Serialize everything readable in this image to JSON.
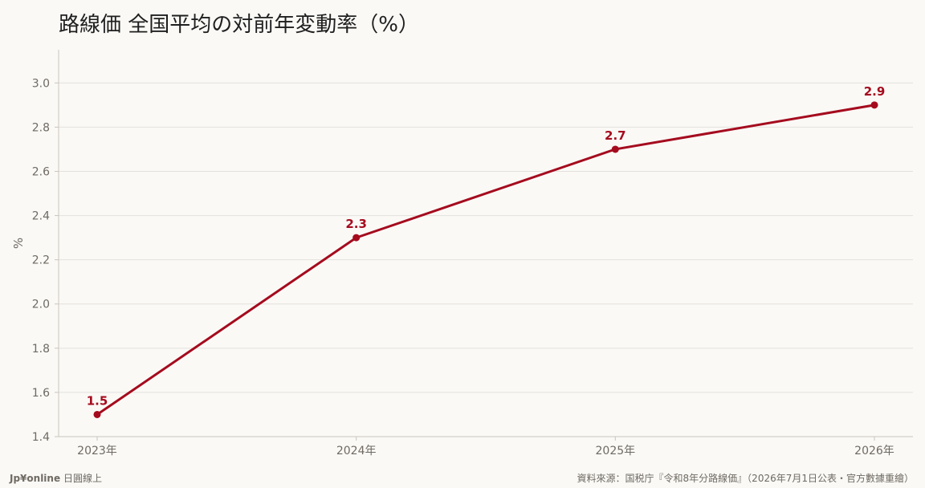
{
  "title": "路線価 全国平均の対前年変動率（%）",
  "footer": {
    "brand": "Jp¥online",
    "brand_suffix": "日圓線上",
    "source": "資料來源：国税庁『令和8年分路線価』（2026年7月1日公表・官方數據重繪）"
  },
  "colors": {
    "line": "#a50b1e",
    "grid": "#e4e1dc",
    "axis": "#c9c5be",
    "tick_text": "#6f6a62"
  },
  "chart_data": {
    "type": "line",
    "categories": [
      "2023年",
      "2024年",
      "2025年",
      "2026年"
    ],
    "series": [
      {
        "values": [
          1.5,
          2.3,
          2.7,
          2.9
        ]
      }
    ],
    "data_labels": [
      "1.5",
      "2.3",
      "2.7",
      "2.9"
    ],
    "ylabel": "%",
    "xlabel": "",
    "ylim": [
      1.4,
      3.15
    ],
    "yticks": [
      1.4,
      1.6,
      1.8,
      2.0,
      2.2,
      2.4,
      2.6,
      2.8,
      3.0
    ],
    "ytick_labels": [
      "1.4",
      "1.6",
      "1.8",
      "2.0",
      "2.2",
      "2.4",
      "2.6",
      "2.8",
      "3.0"
    ],
    "grid": true,
    "legend": "none"
  }
}
